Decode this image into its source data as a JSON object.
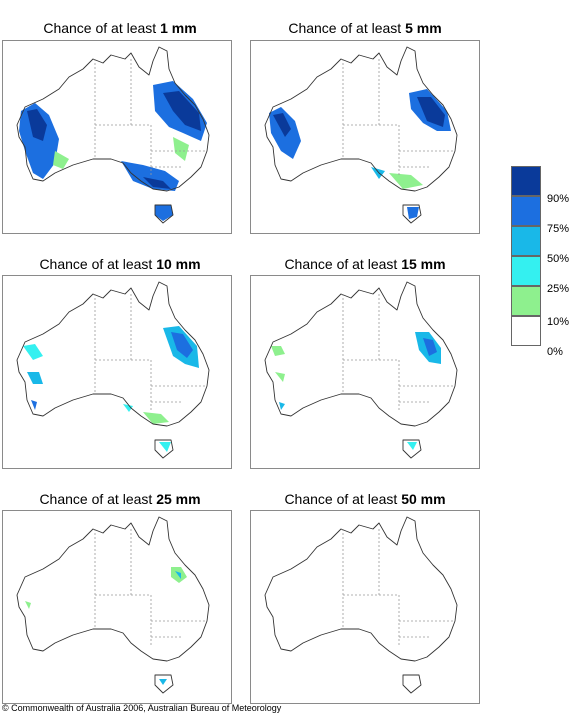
{
  "panels": [
    {
      "title_prefix": "Chance of at least ",
      "title_amount": "1 mm"
    },
    {
      "title_prefix": "Chance of at least ",
      "title_amount": "5 mm"
    },
    {
      "title_prefix": "Chance of at least ",
      "title_amount": "10 mm"
    },
    {
      "title_prefix": "Chance of at least ",
      "title_amount": "15 mm"
    },
    {
      "title_prefix": "Chance of at least ",
      "title_amount": "25 mm"
    },
    {
      "title_prefix": "Chance of at least ",
      "title_amount": "50 mm"
    }
  ],
  "legend": {
    "labels": [
      "90%",
      "75%",
      "50%",
      "25%",
      "10%",
      "0%"
    ],
    "colors": [
      "#0a3a9a",
      "#1c6fe0",
      "#19b8e8",
      "#34f0f0",
      "#8ef08e",
      "#ffffff"
    ]
  },
  "footer": "© Commonwealth of Australia 2006, Australian Bureau of Meteorology"
}
